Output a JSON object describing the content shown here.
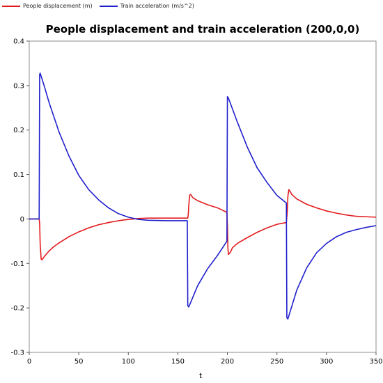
{
  "chart_data": {
    "type": "line",
    "title": "People displacement and train acceleration (200,0,0)",
    "xlabel": "t",
    "ylabel": "",
    "xlim": [
      0,
      350
    ],
    "ylim": [
      -0.3,
      0.4
    ],
    "x_ticks": [
      0,
      50,
      100,
      150,
      200,
      250,
      300,
      350
    ],
    "y_ticks": [
      -0.3,
      -0.2,
      -0.1,
      0,
      0.1,
      0.2,
      0.3,
      0.4
    ],
    "x_tick_labels": [
      "0",
      "50",
      "100",
      "150",
      "200",
      "250",
      "300",
      "350"
    ],
    "y_tick_labels": [
      "-0.3",
      "-0.2",
      "-0.1",
      "0",
      "0.1",
      "0.2",
      "0.3",
      "0.4"
    ],
    "grid": true,
    "legend_position": "top-left",
    "series": [
      {
        "name": "People displacement (m)",
        "color": "#e31a1c",
        "x": [
          0,
          10,
          10.5,
          11,
          12,
          13,
          15,
          20,
          25,
          30,
          40,
          50,
          60,
          70,
          80,
          90,
          100,
          110,
          120,
          130,
          140,
          150,
          160,
          160.5,
          161,
          162,
          163,
          165,
          170,
          180,
          190,
          199.5,
          200,
          200.5,
          201,
          203,
          205,
          210,
          220,
          230,
          240,
          250,
          259.5,
          260,
          260.5,
          261,
          262,
          263,
          265,
          270,
          280,
          290,
          300,
          310,
          320,
          330,
          340,
          350
        ],
        "y": [
          0,
          0,
          -0.01,
          -0.055,
          -0.09,
          -0.092,
          -0.085,
          -0.072,
          -0.062,
          -0.054,
          -0.04,
          -0.029,
          -0.02,
          -0.013,
          -0.008,
          -0.004,
          -0.001,
          0.001,
          0.002,
          0.002,
          0.002,
          0.002,
          0.002,
          0.01,
          0.03,
          0.054,
          0.055,
          0.048,
          0.041,
          0.032,
          0.025,
          0.015,
          -0.015,
          -0.065,
          -0.08,
          -0.075,
          -0.065,
          -0.055,
          -0.042,
          -0.03,
          -0.02,
          -0.012,
          -0.008,
          0.005,
          0.02,
          0.05,
          0.066,
          0.063,
          0.055,
          0.045,
          0.033,
          0.025,
          0.018,
          0.013,
          0.009,
          0.006,
          0.005,
          0.004
        ]
      },
      {
        "name": "Train acceleration (m/s^2)",
        "color": "#1f1fcc",
        "x": [
          0,
          10,
          10.5,
          11,
          15,
          20,
          30,
          40,
          50,
          60,
          70,
          80,
          90,
          100,
          110,
          120,
          140,
          159.5,
          160,
          161,
          170,
          180,
          190,
          199.5,
          200,
          201,
          210,
          220,
          230,
          240,
          250,
          259.5,
          260,
          261,
          270,
          280,
          290,
          300,
          310,
          320,
          330,
          340,
          350
        ],
        "y": [
          0,
          0,
          0.325,
          0.328,
          0.3,
          0.262,
          0.196,
          0.142,
          0.098,
          0.066,
          0.043,
          0.025,
          0.012,
          0.004,
          -0.001,
          -0.003,
          -0.004,
          -0.004,
          -0.195,
          -0.198,
          -0.15,
          -0.112,
          -0.082,
          -0.05,
          0.275,
          0.272,
          0.218,
          0.162,
          0.115,
          0.082,
          0.053,
          0.036,
          -0.222,
          -0.225,
          -0.16,
          -0.11,
          -0.076,
          -0.055,
          -0.04,
          -0.03,
          -0.024,
          -0.019,
          -0.015
        ]
      }
    ]
  }
}
